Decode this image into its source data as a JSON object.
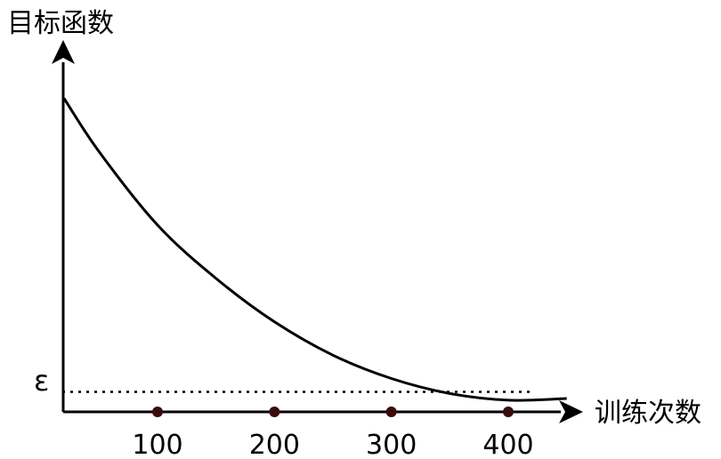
{
  "chart_data": {
    "type": "line",
    "ylabel": "目标函数",
    "xlabel": "训练次数",
    "epsilon_label": "ε",
    "x_ticks": [
      {
        "value": 100,
        "label": "100"
      },
      {
        "value": 200,
        "label": "200"
      },
      {
        "value": 300,
        "label": "300"
      },
      {
        "value": 400,
        "label": "400"
      }
    ],
    "series": [
      {
        "x": [
          20,
          50,
          100,
          150,
          200,
          250,
          300,
          350,
          400,
          450
        ],
        "y": [
          9.4,
          7.8,
          5.6,
          4.0,
          2.7,
          1.7,
          1.0,
          0.55,
          0.35,
          0.4
        ]
      }
    ],
    "epsilon_value": 0.6,
    "xlim": [
      0,
      500
    ],
    "ylim": [
      0,
      10
    ],
    "grid": false,
    "colors": {
      "curve": "#000000",
      "tick_marker": "#3b0b0b"
    }
  }
}
